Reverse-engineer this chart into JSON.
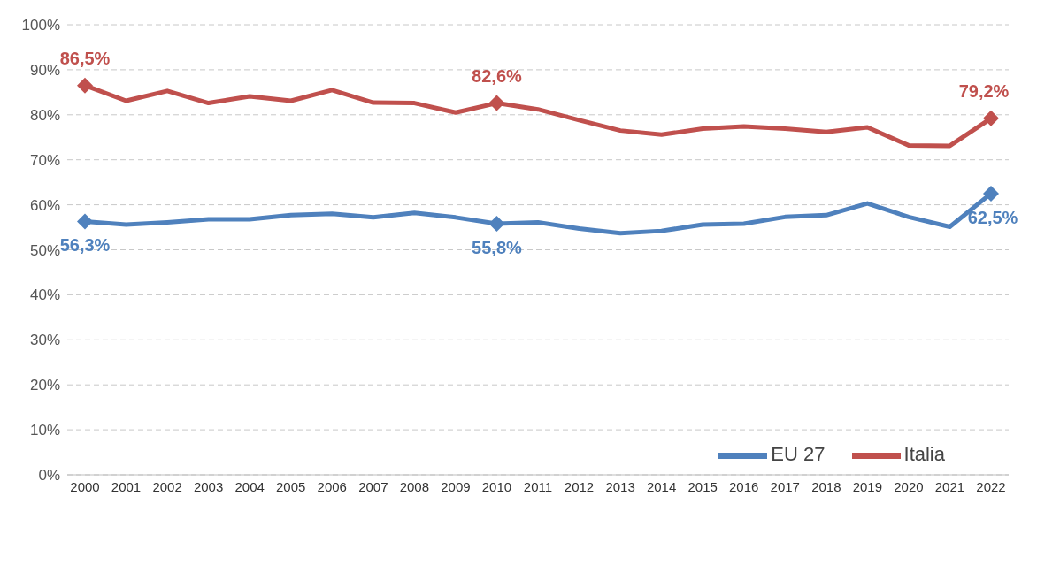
{
  "chart_data": {
    "type": "line",
    "categories": [
      "2000",
      "2001",
      "2002",
      "2003",
      "2004",
      "2005",
      "2006",
      "2007",
      "2008",
      "2009",
      "2010",
      "2011",
      "2012",
      "2013",
      "2014",
      "2015",
      "2016",
      "2017",
      "2018",
      "2019",
      "2020",
      "2021",
      "2022"
    ],
    "series": [
      {
        "name": "EU 27",
        "color": "#4f81bd",
        "values": [
          56.3,
          55.6,
          56.1,
          56.8,
          56.8,
          57.7,
          58.0,
          57.2,
          58.2,
          57.2,
          55.8,
          56.1,
          54.7,
          53.7,
          54.2,
          55.6,
          55.8,
          57.3,
          57.7,
          60.3,
          57.3,
          55.1,
          62.5
        ],
        "value_labels": [
          "56,3%",
          null,
          null,
          null,
          null,
          null,
          null,
          null,
          null,
          null,
          "55,8%",
          null,
          null,
          null,
          null,
          null,
          null,
          null,
          null,
          null,
          null,
          null,
          "62,5%"
        ]
      },
      {
        "name": "Italia",
        "color": "#c0504d",
        "values": [
          86.5,
          83.1,
          85.3,
          82.6,
          84.1,
          83.1,
          85.5,
          82.7,
          82.6,
          80.5,
          82.6,
          81.2,
          78.8,
          76.5,
          75.6,
          76.9,
          77.4,
          76.9,
          76.2,
          77.2,
          73.2,
          73.1,
          79.2
        ],
        "value_labels": [
          "86,5%",
          null,
          null,
          null,
          null,
          null,
          null,
          null,
          null,
          null,
          "82,6%",
          null,
          null,
          null,
          null,
          null,
          null,
          null,
          null,
          null,
          null,
          null,
          "79,2%"
        ]
      }
    ],
    "ylim": [
      0,
      100
    ],
    "yticks": [
      {
        "value": 0,
        "label": "0%"
      },
      {
        "value": 10,
        "label": "10%"
      },
      {
        "value": 20,
        "label": "20%"
      },
      {
        "value": 30,
        "label": "30%"
      },
      {
        "value": 40,
        "label": "40%"
      },
      {
        "value": 50,
        "label": "50%"
      },
      {
        "value": 60,
        "label": "60%"
      },
      {
        "value": 70,
        "label": "70%"
      },
      {
        "value": 80,
        "label": "80%"
      },
      {
        "value": 90,
        "label": "90%"
      },
      {
        "value": 100,
        "label": "100%"
      }
    ],
    "grid": "y",
    "legend": "bottom right",
    "line_style": "solid"
  }
}
